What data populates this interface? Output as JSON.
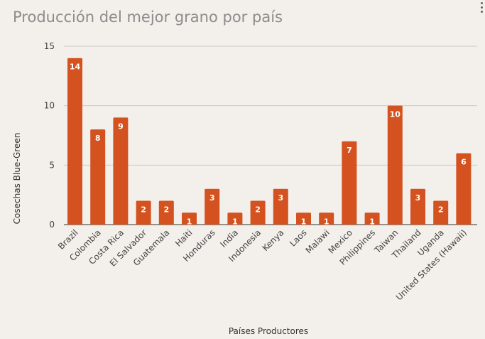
{
  "title": "Producción del mejor grano por país",
  "menu_icon": "more-vert-icon",
  "colors": {
    "bar": "#d4521f",
    "grid": "#cfc9c2",
    "background": "#f3efea"
  },
  "chart_data": {
    "type": "bar",
    "categories": [
      "Brazil",
      "Colombia",
      "Costa Rica",
      "El Salvador",
      "Guatemala",
      "Haiti",
      "Honduras",
      "India",
      "Indonesia",
      "Kenya",
      "Laos",
      "Malawi",
      "Mexico",
      "Philippines",
      "Taiwan",
      "Thailand",
      "Uganda",
      "United States (Hawaii)"
    ],
    "values": [
      14,
      8,
      9,
      2,
      2,
      1,
      3,
      1,
      2,
      3,
      1,
      1,
      7,
      1,
      10,
      3,
      2,
      6
    ],
    "ylim": [
      0,
      15
    ],
    "yticks": [
      0,
      5,
      10,
      15
    ],
    "xlabel": "Países Productores",
    "ylabel": "Cosechas Blue-Green",
    "grid": true,
    "data_labels": true,
    "legend": "none"
  }
}
